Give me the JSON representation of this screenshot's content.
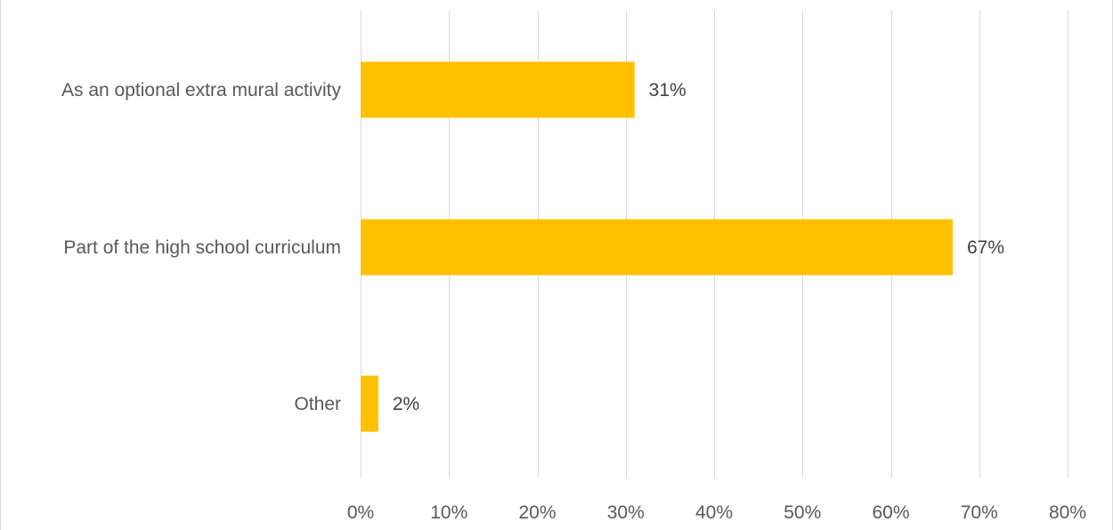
{
  "chart_data": {
    "type": "bar",
    "orientation": "horizontal",
    "categories": [
      "As an optional extra mural activity",
      "Part of the high school curriculum",
      "Other"
    ],
    "values": [
      31,
      67,
      2
    ],
    "data_labels": [
      "31%",
      "67%",
      "2%"
    ],
    "xlim": [
      0,
      80
    ],
    "x_ticks": [
      0,
      10,
      20,
      30,
      40,
      50,
      60,
      70,
      80
    ],
    "x_tick_labels": [
      "0%",
      "10%",
      "20%",
      "30%",
      "40%",
      "50%",
      "60%",
      "70%",
      "80%"
    ],
    "grid": "vertical",
    "legend": "none",
    "title": "",
    "xlabel": "",
    "ylabel": "",
    "colors": {
      "bar": "#FFC000",
      "grid": "#d9d9d9"
    }
  }
}
